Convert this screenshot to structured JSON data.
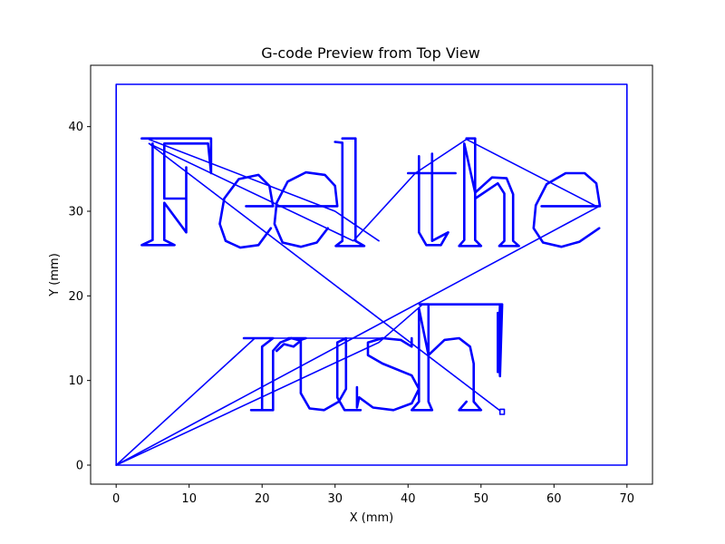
{
  "chart_data": {
    "type": "line",
    "title": "G-code Preview from Top View",
    "xlabel": "X (mm)",
    "ylabel": "Y (mm)",
    "xlim": [
      -3.5,
      73.5
    ],
    "ylim": [
      -2.25,
      47.25
    ],
    "xticks": [
      0,
      10,
      20,
      30,
      40,
      50,
      60,
      70
    ],
    "yticks": [
      0,
      10,
      20,
      30,
      40
    ],
    "grid": false,
    "line_color": "#0000ff",
    "series": [
      {
        "label": "border",
        "points": [
          [
            0,
            0
          ],
          [
            70,
            0
          ],
          [
            70,
            45
          ],
          [
            0,
            45
          ],
          [
            0,
            0
          ]
        ]
      },
      {
        "label": "travel-1",
        "points": [
          [
            0,
            0
          ],
          [
            66,
            30.5
          ],
          [
            48,
            38.5
          ],
          [
            41,
            34.5
          ],
          [
            32.5,
            26.5
          ],
          [
            4.5,
            38
          ],
          [
            52.5,
            6.5
          ]
        ]
      },
      {
        "label": "travel-2",
        "points": [
          [
            0,
            0
          ],
          [
            36,
            14.5
          ],
          [
            42,
            19
          ]
        ]
      },
      {
        "label": "travel-3",
        "points": [
          [
            0,
            0
          ],
          [
            19,
            15
          ],
          [
            37,
            15
          ]
        ]
      },
      {
        "label": "travel-4",
        "points": [
          [
            4.5,
            38.5
          ],
          [
            30,
            30
          ],
          [
            36,
            26.5
          ]
        ]
      },
      {
        "label": "letter-F",
        "points": [
          [
            3.5,
            38.6
          ],
          [
            13,
            38.6
          ],
          [
            13,
            34.5
          ],
          [
            12.6,
            38
          ],
          [
            6.6,
            38
          ],
          [
            6.6,
            31.5
          ],
          [
            9.6,
            31.5
          ],
          [
            9.6,
            35.2
          ],
          [
            9.6,
            29.6
          ],
          [
            9.6,
            27.5
          ],
          [
            6.6,
            31
          ],
          [
            6.6,
            26.6
          ],
          [
            8,
            26
          ],
          [
            3.5,
            26
          ],
          [
            5,
            26.6
          ],
          [
            5,
            38
          ]
        ]
      },
      {
        "label": "letter-e1",
        "points": [
          [
            17.8,
            30.6
          ],
          [
            21.5,
            30.6
          ],
          [
            21,
            33
          ],
          [
            19.5,
            34.3
          ],
          [
            16.8,
            33.8
          ],
          [
            14.8,
            31.5
          ],
          [
            14.2,
            28.5
          ],
          [
            15,
            26.5
          ],
          [
            17,
            25.7
          ],
          [
            19.5,
            26
          ],
          [
            21.2,
            28
          ]
        ]
      },
      {
        "label": "letter-e2",
        "points": [
          [
            22.2,
            30.6
          ],
          [
            30.3,
            30.6
          ],
          [
            30,
            33
          ],
          [
            28.6,
            34.3
          ],
          [
            26,
            34.6
          ],
          [
            23.5,
            33.5
          ],
          [
            22,
            31
          ],
          [
            21.7,
            28.5
          ],
          [
            22.8,
            26.3
          ],
          [
            25.3,
            25.8
          ],
          [
            27.5,
            26.3
          ],
          [
            29,
            28
          ]
        ]
      },
      {
        "label": "letter-l",
        "points": [
          [
            31,
            38.6
          ],
          [
            32.8,
            38.6
          ],
          [
            32.8,
            26.5
          ],
          [
            34,
            25.9
          ],
          [
            30.1,
            25.9
          ],
          [
            31,
            26.5
          ],
          [
            31,
            38.1
          ],
          [
            30,
            38.2
          ]
        ]
      },
      {
        "label": "letter-t",
        "points": [
          [
            41.5,
            36.5
          ],
          [
            41.5,
            27.5
          ],
          [
            42.5,
            26
          ],
          [
            44.5,
            26
          ],
          [
            45.5,
            27.5
          ],
          [
            43.3,
            26.5
          ],
          [
            43.3,
            36.8
          ],
          [
            43.3,
            34.5
          ],
          [
            46.5,
            34.5
          ],
          [
            40,
            34.5
          ]
        ]
      },
      {
        "label": "letter-h",
        "points": [
          [
            48,
            38.6
          ],
          [
            49.2,
            38.6
          ],
          [
            49.2,
            26.6
          ],
          [
            50,
            25.9
          ],
          [
            47,
            25.9
          ],
          [
            47.7,
            26.6
          ],
          [
            47.7,
            38
          ],
          [
            49.2,
            32.2
          ],
          [
            51.5,
            34
          ],
          [
            53.5,
            33.9
          ],
          [
            54.4,
            32
          ],
          [
            54.4,
            26.5
          ],
          [
            55.2,
            25.9
          ],
          [
            52.5,
            25.9
          ],
          [
            53.2,
            26.5
          ],
          [
            53.2,
            32.1
          ],
          [
            52.3,
            33.3
          ],
          [
            49.2,
            31.5
          ]
        ]
      },
      {
        "label": "letter-e3",
        "points": [
          [
            58.3,
            30.6
          ],
          [
            66.3,
            30.6
          ],
          [
            65.8,
            33.3
          ],
          [
            64.2,
            34.5
          ],
          [
            61.6,
            34.5
          ],
          [
            59,
            33.2
          ],
          [
            57.5,
            30.7
          ],
          [
            57.2,
            28
          ],
          [
            58.5,
            26.3
          ],
          [
            61,
            25.8
          ],
          [
            63.5,
            26.4
          ],
          [
            66.2,
            28
          ]
        ]
      },
      {
        "label": "letter-r",
        "points": [
          [
            17.5,
            15
          ],
          [
            21.5,
            15
          ],
          [
            20,
            14
          ],
          [
            20,
            6.5
          ],
          [
            18.5,
            6.5
          ],
          [
            21.5,
            6.5
          ],
          [
            21.5,
            13.5
          ],
          [
            22.5,
            14.5
          ],
          [
            24,
            15
          ],
          [
            25.3,
            14.7
          ],
          [
            24.3,
            14
          ],
          [
            23,
            14.3
          ],
          [
            22,
            13.5
          ]
        ]
      },
      {
        "label": "letter-u",
        "points": [
          [
            23.6,
            15
          ],
          [
            26,
            15
          ],
          [
            25.3,
            14.8
          ],
          [
            25.3,
            8.5
          ],
          [
            26.5,
            6.7
          ],
          [
            28.5,
            6.5
          ],
          [
            30.5,
            7.5
          ],
          [
            31.5,
            9
          ],
          [
            31.5,
            15
          ],
          [
            30.3,
            14.5
          ],
          [
            30.3,
            8
          ],
          [
            31.3,
            6.5
          ],
          [
            33.5,
            6.5
          ]
        ]
      },
      {
        "label": "letter-s",
        "points": [
          [
            33,
            9.2
          ],
          [
            33,
            6.8
          ],
          [
            33.3,
            8
          ],
          [
            35.2,
            6.8
          ],
          [
            38,
            6.5
          ],
          [
            40.5,
            7.3
          ],
          [
            41.5,
            9
          ],
          [
            40.5,
            10.6
          ],
          [
            36.5,
            12
          ],
          [
            34.5,
            13
          ],
          [
            34.5,
            14.5
          ],
          [
            36.5,
            15
          ],
          [
            39,
            14.8
          ],
          [
            40.5,
            14
          ],
          [
            40.5,
            15
          ]
        ]
      },
      {
        "label": "letter-h2",
        "points": [
          [
            41.6,
            19
          ],
          [
            42.8,
            19
          ],
          [
            42.8,
            7.5
          ],
          [
            43.3,
            6.5
          ],
          [
            40.5,
            6.5
          ],
          [
            41.5,
            7.5
          ],
          [
            41.5,
            18.5
          ],
          [
            42.8,
            13
          ],
          [
            45,
            14.8
          ],
          [
            47,
            15
          ],
          [
            48.5,
            14
          ],
          [
            49,
            12
          ],
          [
            49,
            7.5
          ],
          [
            50,
            6.5
          ],
          [
            47,
            6.5
          ],
          [
            48,
            7.5
          ]
        ]
      },
      {
        "label": "letter-excl",
        "points": [
          [
            41.6,
            19
          ],
          [
            52.9,
            19
          ],
          [
            52.6,
            10.5
          ],
          [
            52.3,
            18
          ],
          [
            52.3,
            11
          ],
          [
            52.6,
            19
          ]
        ]
      },
      {
        "label": "excl-dot",
        "points": [
          [
            52.6,
            6.6
          ],
          [
            53.2,
            6.6
          ],
          [
            53.2,
            6.0
          ],
          [
            52.6,
            6.0
          ],
          [
            52.6,
            6.6
          ]
        ]
      }
    ]
  }
}
